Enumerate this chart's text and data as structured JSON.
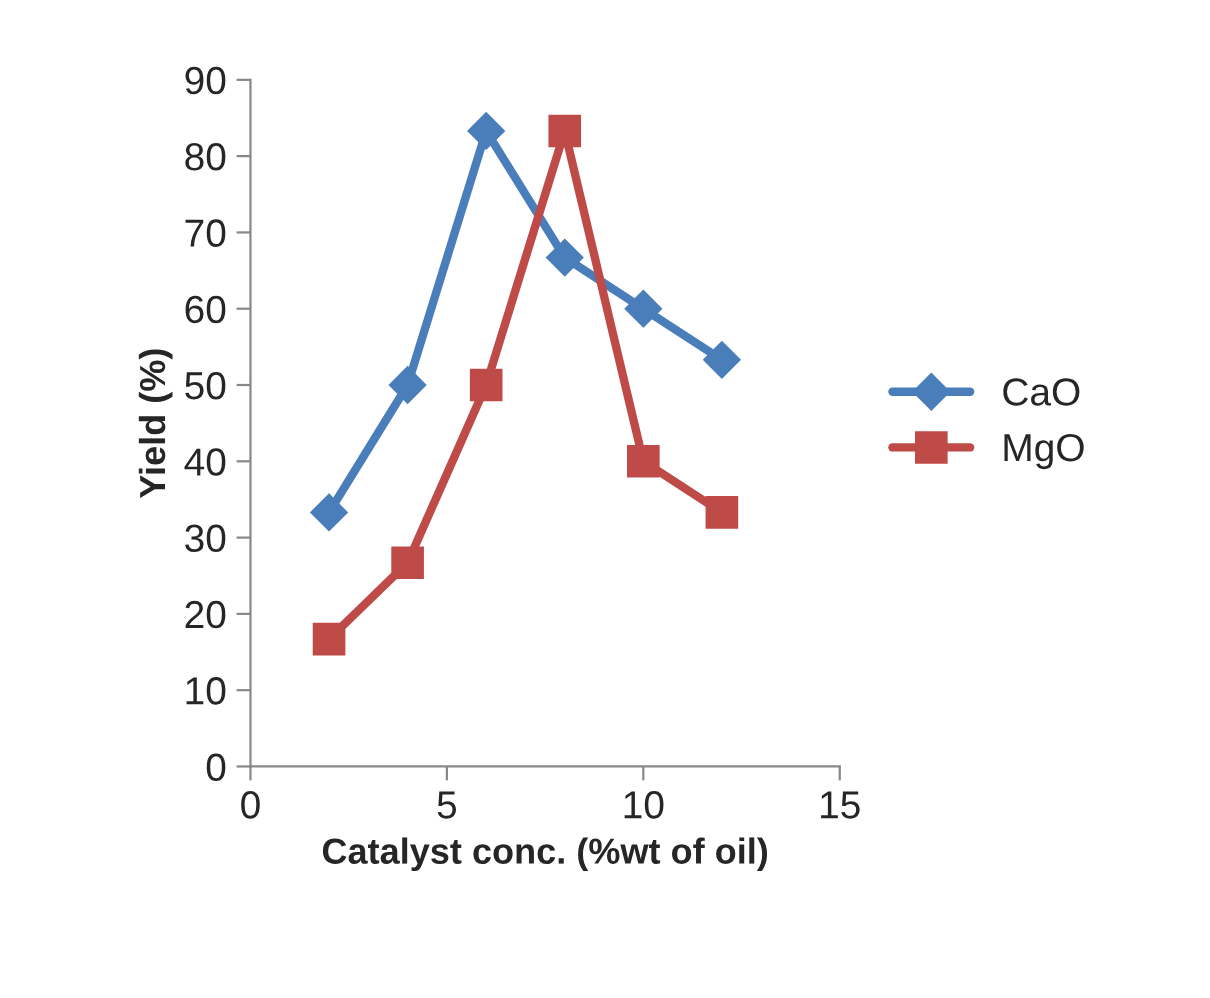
{
  "chart_data": {
    "type": "line",
    "xlabel": "Catalyst conc. (%wt of oil)",
    "ylabel": "Yield (%)",
    "x": [
      2,
      4,
      6,
      8,
      10,
      12
    ],
    "series": [
      {
        "name": "CaO",
        "color": "#4a7ebb",
        "marker": "diamond",
        "values": [
          33.3,
          50,
          83.3,
          66.7,
          60,
          53.3
        ]
      },
      {
        "name": "MgO",
        "color": "#be4b48",
        "marker": "square",
        "values": [
          16.7,
          26.7,
          50,
          83.3,
          40,
          33.3
        ]
      }
    ],
    "xlim": [
      0,
      15
    ],
    "xticks": [
      0,
      5,
      10,
      15
    ],
    "ylim": [
      0,
      90
    ],
    "yticks": [
      0,
      10,
      20,
      30,
      40,
      50,
      60,
      70,
      80,
      90
    ],
    "grid": false,
    "legend": "right",
    "line_style": "solid"
  }
}
